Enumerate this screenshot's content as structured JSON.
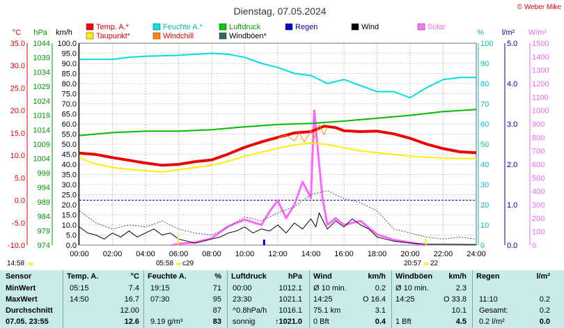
{
  "chart_data": {
    "type": "line",
    "title": "Dienstag, 07.05.2024",
    "credit": "© Weber Mike",
    "x_ticks": [
      "00:00",
      "02:00",
      "04:00",
      "06:00",
      "08:00",
      "10:00",
      "12:00",
      "14:00",
      "16:00",
      "18:00",
      "20:00",
      "22:00",
      "24:00"
    ],
    "axes": {
      "temp": {
        "unit": "°C",
        "ticks": [
          "35.0",
          "30.0",
          "25.0",
          "20.0",
          "15.0",
          "10.0",
          "5.0",
          "0.0",
          "-5.0",
          "-10.0"
        ],
        "range": [
          -10,
          35
        ],
        "color": "#e00000"
      },
      "pressure": {
        "unit": "hPa",
        "ticks": [
          "1044",
          "1039",
          "1034",
          "1029",
          "1024",
          "1019",
          "1014",
          "1009",
          "1004",
          "999",
          "994",
          "989",
          "984",
          "979",
          "974"
        ],
        "range": [
          974,
          1044
        ],
        "color": "#009900"
      },
      "wind": {
        "unit": "km/h",
        "ticks": [
          "100.0",
          "95.0",
          "90.0",
          "85.0",
          "80.0",
          "75.0",
          "70.0",
          "65.0",
          "60.0",
          "55.0",
          "50.0",
          "45.0",
          "40.0",
          "35.0",
          "30.0",
          "25.0",
          "20.0",
          "15.0",
          "10.0",
          "5.0",
          "0.0"
        ],
        "range": [
          0,
          100
        ],
        "color": "#000000"
      },
      "humidity": {
        "unit": "%",
        "ticks": [
          "100",
          "90",
          "80",
          "70",
          "60",
          "50",
          "40",
          "30",
          "20",
          "10",
          "0"
        ],
        "range": [
          0,
          100
        ],
        "color": "#00cccc"
      },
      "rain": {
        "unit": "l/m²",
        "ticks": [
          "5.0",
          "4.0",
          "3.0",
          "2.0",
          "1.0",
          "0.0"
        ],
        "range": [
          0,
          5
        ],
        "color": "#000099"
      },
      "solar": {
        "unit": "W/m²",
        "ticks": [
          "1500",
          "1400",
          "1300",
          "1200",
          "1100",
          "1000",
          "900",
          "800",
          "700",
          "600",
          "500",
          "400",
          "300",
          "200",
          "100",
          "0"
        ],
        "range": [
          0,
          1500
        ],
        "color": "#ee66ee"
      }
    },
    "legend": [
      {
        "label": "Temp. A.*",
        "color": "#ff0000"
      },
      {
        "label": "Feuchte A.*",
        "color": "#00e5e5"
      },
      {
        "label": "Luftdruck",
        "color": "#00cc00"
      },
      {
        "label": "Regen",
        "color": "#0000cc"
      },
      {
        "label": "Wind",
        "color": "#000000"
      },
      {
        "label": "Solar",
        "color": "#ff77ff"
      },
      {
        "label": "Taupunkt*",
        "color": "#ffee00"
      },
      {
        "label": "Windchill",
        "color": "#ff8800"
      },
      {
        "label": "Windböen*",
        "color": "#336666"
      }
    ],
    "series": [
      {
        "name": "Temp. A.*",
        "axis": "temp",
        "color": "#ee0000",
        "width": 4,
        "points": [
          [
            0,
            10.5
          ],
          [
            1,
            10.2
          ],
          [
            2,
            9.5
          ],
          [
            3,
            8.9
          ],
          [
            4,
            8.3
          ],
          [
            5,
            7.8
          ],
          [
            6,
            8.0
          ],
          [
            7,
            8.6
          ],
          [
            8,
            9.0
          ],
          [
            9,
            10.3
          ],
          [
            10,
            11.8
          ],
          [
            11,
            13.0
          ],
          [
            12,
            14.0
          ],
          [
            13,
            15.0
          ],
          [
            14,
            15.3
          ],
          [
            14.8,
            16.5
          ],
          [
            15.5,
            16.2
          ],
          [
            16,
            15.5
          ],
          [
            17,
            15.3
          ],
          [
            18,
            15.4
          ],
          [
            19,
            14.8
          ],
          [
            20,
            13.8
          ],
          [
            21,
            12.5
          ],
          [
            22,
            11.5
          ],
          [
            23,
            10.8
          ],
          [
            24,
            10.6
          ]
        ]
      },
      {
        "name": "Taupunkt*",
        "axis": "temp",
        "color": "#ffee00",
        "width": 2,
        "points": [
          [
            0,
            9.5
          ],
          [
            0.5,
            8.7
          ],
          [
            1,
            8.1
          ],
          [
            2,
            7.3
          ],
          [
            3,
            6.9
          ],
          [
            4,
            6.6
          ],
          [
            5,
            6.3
          ],
          [
            6,
            6.8
          ],
          [
            7,
            7.3
          ],
          [
            8,
            7.8
          ],
          [
            9,
            8.7
          ],
          [
            10,
            9.8
          ],
          [
            11,
            10.7
          ],
          [
            12,
            11.6
          ],
          [
            13,
            12.3
          ],
          [
            14,
            12.8
          ],
          [
            15,
            12.4
          ],
          [
            16,
            11.7
          ],
          [
            17,
            11.0
          ],
          [
            18,
            10.6
          ],
          [
            19,
            10.2
          ],
          [
            20,
            9.8
          ],
          [
            21,
            9.6
          ],
          [
            22,
            9.4
          ],
          [
            23,
            9.3
          ],
          [
            24,
            9.3
          ]
        ]
      },
      {
        "name": "Windchill",
        "axis": "temp",
        "color": "#ff8800",
        "width": 1,
        "points": [
          [
            12,
            13.8
          ],
          [
            12.5,
            14.5
          ],
          [
            13,
            13.2
          ],
          [
            13.3,
            15.0
          ],
          [
            13.6,
            13.0
          ],
          [
            14,
            15.5
          ],
          [
            14.2,
            13.8
          ],
          [
            14.5,
            16.8
          ],
          [
            14.8,
            14.6
          ],
          [
            15,
            16.4
          ]
        ]
      },
      {
        "name": "Feuchte A.*",
        "axis": "humidity",
        "color": "#00dddd",
        "width": 2,
        "points": [
          [
            0,
            92
          ],
          [
            2,
            92
          ],
          [
            3,
            93
          ],
          [
            4,
            93.5
          ],
          [
            6,
            94
          ],
          [
            8,
            95
          ],
          [
            9,
            94.5
          ],
          [
            10,
            93
          ],
          [
            11,
            90
          ],
          [
            12,
            88
          ],
          [
            13,
            85
          ],
          [
            14,
            84
          ],
          [
            15,
            80
          ],
          [
            16,
            82
          ],
          [
            17,
            79
          ],
          [
            18,
            76
          ],
          [
            19,
            76
          ],
          [
            20,
            73
          ],
          [
            21,
            78
          ],
          [
            22,
            82
          ],
          [
            23,
            83
          ],
          [
            24,
            83
          ]
        ]
      },
      {
        "name": "Luftdruck",
        "axis": "pressure",
        "color": "#00bb00",
        "width": 2,
        "points": [
          [
            0,
            1012
          ],
          [
            2,
            1013
          ],
          [
            4,
            1013.5
          ],
          [
            6,
            1013.5
          ],
          [
            8,
            1014
          ],
          [
            10,
            1015
          ],
          [
            12,
            1015.8
          ],
          [
            14,
            1016.2
          ],
          [
            16,
            1017
          ],
          [
            18,
            1018
          ],
          [
            20,
            1019
          ],
          [
            22,
            1020.3
          ],
          [
            24,
            1021
          ]
        ]
      },
      {
        "name": "Solar",
        "axis": "solar",
        "color": "#ff66ff",
        "width": 3,
        "points": [
          [
            5.6,
            0
          ],
          [
            6,
            10
          ],
          [
            7,
            20
          ],
          [
            8,
            50
          ],
          [
            9,
            140
          ],
          [
            10,
            190
          ],
          [
            11,
            150
          ],
          [
            11.5,
            250
          ],
          [
            12,
            330
          ],
          [
            12.5,
            200
          ],
          [
            13,
            300
          ],
          [
            13.5,
            470
          ],
          [
            14,
            350
          ],
          [
            14.2,
            1000
          ],
          [
            14.5,
            600
          ],
          [
            14.7,
            350
          ],
          [
            15,
            150
          ],
          [
            15.5,
            200
          ],
          [
            16,
            150
          ],
          [
            17,
            180
          ],
          [
            18,
            80
          ],
          [
            19,
            40
          ],
          [
            20,
            20
          ],
          [
            20.9,
            0
          ]
        ]
      },
      {
        "name": "Windböen*",
        "axis": "wind",
        "color": "#335555",
        "width": 1,
        "dashed": true,
        "points": [
          [
            0,
            17
          ],
          [
            1,
            11
          ],
          [
            2,
            8
          ],
          [
            3,
            10
          ],
          [
            4,
            9
          ],
          [
            5,
            12
          ],
          [
            6,
            8
          ],
          [
            7,
            6
          ],
          [
            8,
            5
          ],
          [
            9,
            9
          ],
          [
            10,
            14
          ],
          [
            11,
            12
          ],
          [
            12,
            16
          ],
          [
            13,
            19
          ],
          [
            14,
            25
          ],
          [
            15,
            27
          ],
          [
            16,
            23
          ],
          [
            17,
            21
          ],
          [
            18,
            17
          ],
          [
            19,
            8
          ],
          [
            20,
            6
          ],
          [
            21,
            4
          ],
          [
            22,
            3
          ],
          [
            23,
            4
          ],
          [
            24,
            3
          ]
        ]
      },
      {
        "name": "Wind",
        "axis": "wind",
        "color": "#000000",
        "width": 1,
        "points": [
          [
            0,
            9
          ],
          [
            0.5,
            6
          ],
          [
            1,
            5
          ],
          [
            1.5,
            3
          ],
          [
            2,
            6
          ],
          [
            2.5,
            4
          ],
          [
            3,
            7
          ],
          [
            3.5,
            4
          ],
          [
            4,
            6
          ],
          [
            4.5,
            8
          ],
          [
            5,
            5
          ],
          [
            5.5,
            6
          ],
          [
            6,
            3
          ],
          [
            6.5,
            2
          ],
          [
            7,
            1
          ],
          [
            7.5,
            2
          ],
          [
            8,
            3
          ],
          [
            8.5,
            4
          ],
          [
            9,
            6
          ],
          [
            9.5,
            7
          ],
          [
            10,
            9
          ],
          [
            10.5,
            6
          ],
          [
            11,
            8
          ],
          [
            11.5,
            7
          ],
          [
            12,
            10
          ],
          [
            12.5,
            6
          ],
          [
            13,
            11
          ],
          [
            13.5,
            8
          ],
          [
            14,
            13
          ],
          [
            14.3,
            9
          ],
          [
            14.5,
            16
          ],
          [
            14.8,
            11
          ],
          [
            15,
            8
          ],
          [
            15.5,
            12
          ],
          [
            16,
            9
          ],
          [
            16.5,
            13
          ],
          [
            17,
            10
          ],
          [
            17.5,
            8
          ],
          [
            18,
            4
          ],
          [
            18.5,
            3
          ],
          [
            19,
            2
          ],
          [
            20,
            1
          ],
          [
            21,
            0.5
          ],
          [
            22,
            0.5
          ],
          [
            24,
            0.3
          ]
        ]
      }
    ],
    "time_markers": [
      {
        "time": "14:58",
        "note": ""
      },
      {
        "time": "05:58",
        "note": "c29"
      },
      {
        "time": "20:57",
        "note": "22"
      }
    ]
  },
  "table": {
    "headers": [
      "Sensor",
      "Temp. A.",
      "°C",
      "Feuchte A.",
      "%",
      "Luftdruck",
      "hPa",
      "Wind",
      "km/h",
      "Windböen",
      "km/h",
      "Regen",
      "l/m²"
    ],
    "rows": [
      {
        "label": "MinWert",
        "temp_time": "05:15",
        "temp": "7.4",
        "hum_time": "19:15",
        "hum": "71",
        "press_time": "00:00",
        "press": "1012.1",
        "wind_label": "Ø 10 min.",
        "wind": "0.2",
        "gust_label": "Ø 10 min.",
        "gust": "2.3",
        "rain_label": "",
        "rain": ""
      },
      {
        "label": "MaxWert",
        "temp_time": "14:50",
        "temp": "16.7",
        "hum_time": "07:30",
        "hum": "95",
        "press_time": "23:30",
        "press": "1021.1",
        "wind_label": "14:25",
        "wind": "O 16.4",
        "gust_label": "14:25",
        "gust": "O 33.8",
        "rain_label": "11:10",
        "rain": "0.2"
      },
      {
        "label": "Durchschnitt",
        "temp_time": "",
        "temp": "12.00",
        "hum_time": "",
        "hum": "87",
        "press_time": "^0.8hPa/h",
        "press": "1016.1",
        "wind_label": "75.1 km",
        "wind": "3.1",
        "gust_label": "",
        "gust": "10.1",
        "rain_label": "Gesamt:",
        "rain": "0.2"
      },
      {
        "label": "07.05. 23:55",
        "temp_time": "",
        "temp": "12.6",
        "hum_time": "9.19 g/m³",
        "hum": "83",
        "press_time": "sonnig",
        "press": "↑1021.0",
        "wind_label": "0 Bft",
        "wind": "0.4",
        "gust_label": "1 Bft",
        "gust": "4.5",
        "rain_label": "0.2 l/m²",
        "rain": "0.0"
      }
    ]
  }
}
